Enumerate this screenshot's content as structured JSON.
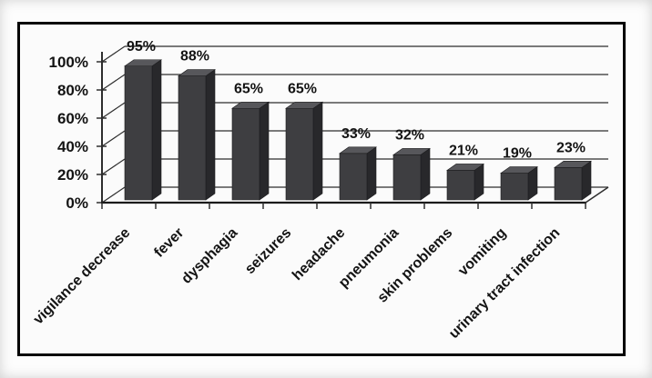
{
  "window": {
    "background": "#fdfdfd",
    "frame_border_color": "#050505",
    "frame_background": "#fbfbfb"
  },
  "chart_data": {
    "type": "bar",
    "style": "3d-column",
    "title": "",
    "xlabel": "",
    "ylabel": "",
    "categories": [
      "vigilance decrease",
      "fever",
      "dysphagia",
      "seizures",
      "headache",
      "pneumonia",
      "skin problems",
      "vomiting",
      "urinary tract infection"
    ],
    "values": [
      95,
      88,
      65,
      65,
      33,
      32,
      21,
      19,
      23
    ],
    "data_labels": [
      "95%",
      "88%",
      "65%",
      "65%",
      "33%",
      "32%",
      "21%",
      "19%",
      "23%"
    ],
    "ylim": [
      0,
      100
    ],
    "ytick_step": 20,
    "ytick_labels": [
      "0%",
      "20%",
      "40%",
      "60%",
      "80%",
      "100%"
    ],
    "grid": true,
    "legend": false,
    "category_label_rotation_deg": -45,
    "colors": {
      "bar_front": "#3e3e41",
      "bar_top": "#57575b",
      "bar_side": "#28282b",
      "bar_edge": "#1c1c1e",
      "gridline": "#2e2e2e",
      "axis": "#1a1a1a",
      "text": "#141414"
    }
  }
}
